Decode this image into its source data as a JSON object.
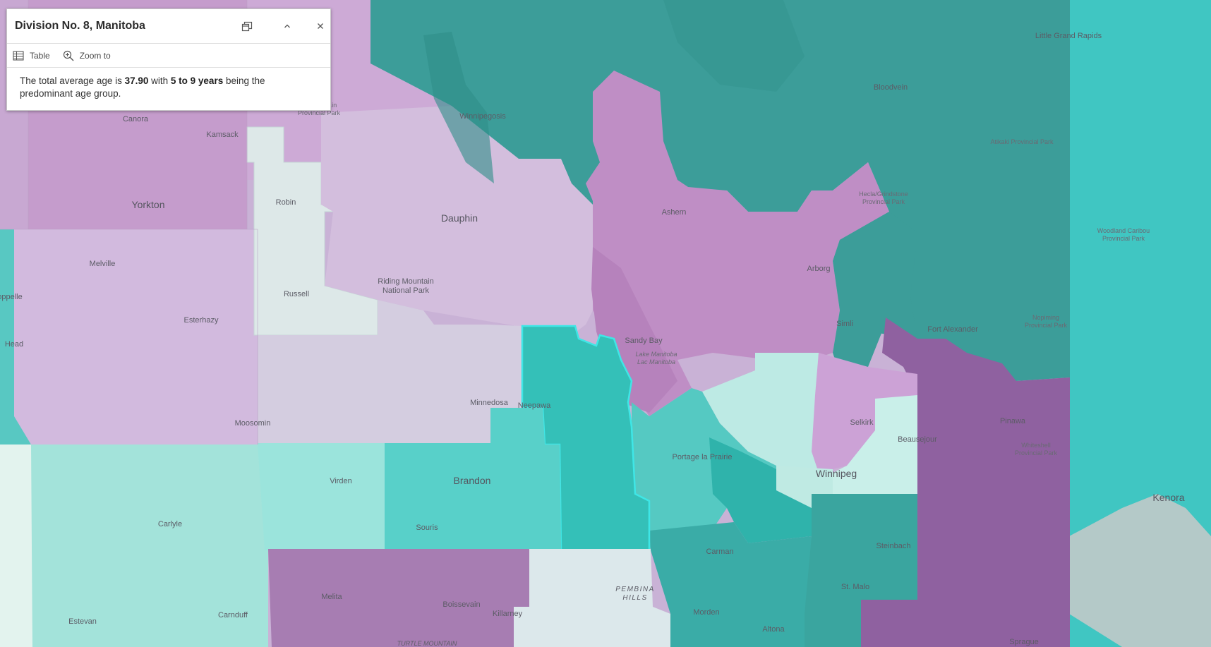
{
  "popup": {
    "title": "Division No. 8, Manitoba",
    "actions": {
      "table": "Table",
      "zoom_to": "Zoom to"
    },
    "body": {
      "pre": "The total average age is ",
      "avg_age": "37.90",
      "mid": " with ",
      "age_group": "5 to 9 years",
      "post": " being the predominant age group."
    }
  },
  "map": {
    "places": {
      "canora": "Canora",
      "kamsack": "Kamsack",
      "yorkton": "Yorkton",
      "melville": "Melville",
      "esterhazy": "Esterhazy",
      "moosomin": "Moosomin",
      "robin": "Robin",
      "russell": "Russell",
      "dauphin": "Dauphin",
      "riding_mountain_1": "Riding Mountain",
      "riding_mountain_2": "National Park",
      "winnipegosis": "Winnipegosis",
      "ashern": "Ashern",
      "bloodvein": "Bloodvein",
      "little_grand_rapids": "Little Grand Rapids",
      "arborg": "Arborg",
      "simli": "Simli",
      "fort_alexander": "Fort Alexander",
      "sandy_bay": "Sandy Bay",
      "minnedosa": "Minnedosa",
      "neepawa": "Neepawa",
      "portage": "Portage la Prairie",
      "selkirk": "Selkirk",
      "beausejour": "Beausejour",
      "pinawa": "Pinawa",
      "winnipeg": "Winnipeg",
      "virden": "Virden",
      "brandon": "Brandon",
      "souris": "Souris",
      "carman": "Carman",
      "steinbach": "Steinbach",
      "st_malo": "St. Malo",
      "morden": "Morden",
      "altona": "Altona",
      "melita": "Melita",
      "boissevain": "Boissevain",
      "killarney": "Killarney",
      "carlyle": "Carlyle",
      "estevan": "Estevan",
      "carnduff": "Carnduff",
      "kenora": "Kenora",
      "sprague": "Sprague",
      "oppelle": "oppelle",
      "head": "Head",
      "pembina_1": "PEMBINA",
      "pembina_2": "HILLS",
      "turtle_mountain": "TURTLE MOUNTAIN",
      "lake_manitoba_1": "Lake Manitoba",
      "lake_manitoba_2": "Lac Manitoba",
      "atikaki": "Atikaki Provincial Park",
      "hecla_1": "Hecla/Grindstone",
      "hecla_2": "Provincial Park",
      "woodland_1": "Woodland Caribou",
      "woodland_2": "Provincial Park",
      "nopiming_1": "Nopiming",
      "nopiming_2": "Provincial Park",
      "whiteshell_1": "Whiteshell",
      "whiteshell_2": "Provincial Park",
      "duck_mtn_1": "...in",
      "duck_mtn_2": "Provincial Park"
    }
  },
  "colors": {
    "teal_dark": "#3a9a96",
    "teal_mid": "#3fbdb6",
    "teal_light": "#9be3da",
    "teal_pale": "#c4ede6",
    "pale_gray": "#dde8e8",
    "purple_light": "#d2bfdc",
    "purple_mid": "#bf8dc4",
    "purple_dark": "#8f62a0",
    "highlight": "#33e0e0"
  }
}
